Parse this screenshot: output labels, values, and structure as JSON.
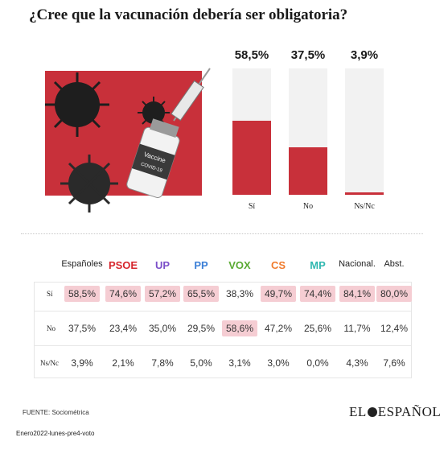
{
  "title": "¿Cree que la vacunación debería ser obligatoria?",
  "illustration": {
    "vial_label_1": "Vaccine",
    "vial_label_2": "COVID-19"
  },
  "chart_data": [
    {
      "type": "bar",
      "categories": [
        "Sí",
        "No",
        "Ns/Nc"
      ],
      "values": [
        58.5,
        37.5,
        3.9
      ],
      "value_labels": [
        "58,5%",
        "37,5%",
        "3,9%"
      ],
      "ylim": [
        0,
        100
      ],
      "title": "",
      "xlabel": "",
      "ylabel": "",
      "colors": {
        "fill": "#c8303a",
        "track": "#f2f2f2"
      }
    },
    {
      "type": "table",
      "columns": [
        "Españoles",
        "PSOE",
        "UP",
        "PP",
        "VOX",
        "CS",
        "MP",
        "Nacional.",
        "Abst."
      ],
      "column_colors": [
        "#222222",
        "#d6262c",
        "#7b4fc9",
        "#3b7fd6",
        "#5aaa33",
        "#f07b2d",
        "#2fb8b0",
        "#222222",
        "#222222"
      ],
      "rows": [
        {
          "label": "Sí",
          "values": [
            "58,5%",
            "74,6%",
            "57,2%",
            "65,5%",
            "38,3%",
            "49,7%",
            "74,4%",
            "84,1%",
            "80,0%"
          ],
          "highlight": [
            true,
            true,
            true,
            true,
            false,
            true,
            true,
            true,
            true
          ]
        },
        {
          "label": "No",
          "values": [
            "37,5%",
            "23,4%",
            "35,0%",
            "29,5%",
            "58,6%",
            "47,2%",
            "25,6%",
            "11,7%",
            "12,4%"
          ],
          "highlight": [
            false,
            false,
            false,
            false,
            true,
            false,
            false,
            false,
            false
          ]
        },
        {
          "label": "Ns/Nc",
          "values": [
            "3,9%",
            "2,1%",
            "7,8%",
            "5,0%",
            "3,1%",
            "3,0%",
            "0,0%",
            "4,3%",
            "7,6%"
          ],
          "highlight": [
            false,
            false,
            false,
            false,
            false,
            false,
            false,
            false,
            false
          ]
        }
      ]
    }
  ],
  "source": "FUENTE: Sociométrica",
  "logo": {
    "left": "EL",
    "right": "ESPAÑOL"
  },
  "footer": "Enero2022-lunes-pre4-voto"
}
